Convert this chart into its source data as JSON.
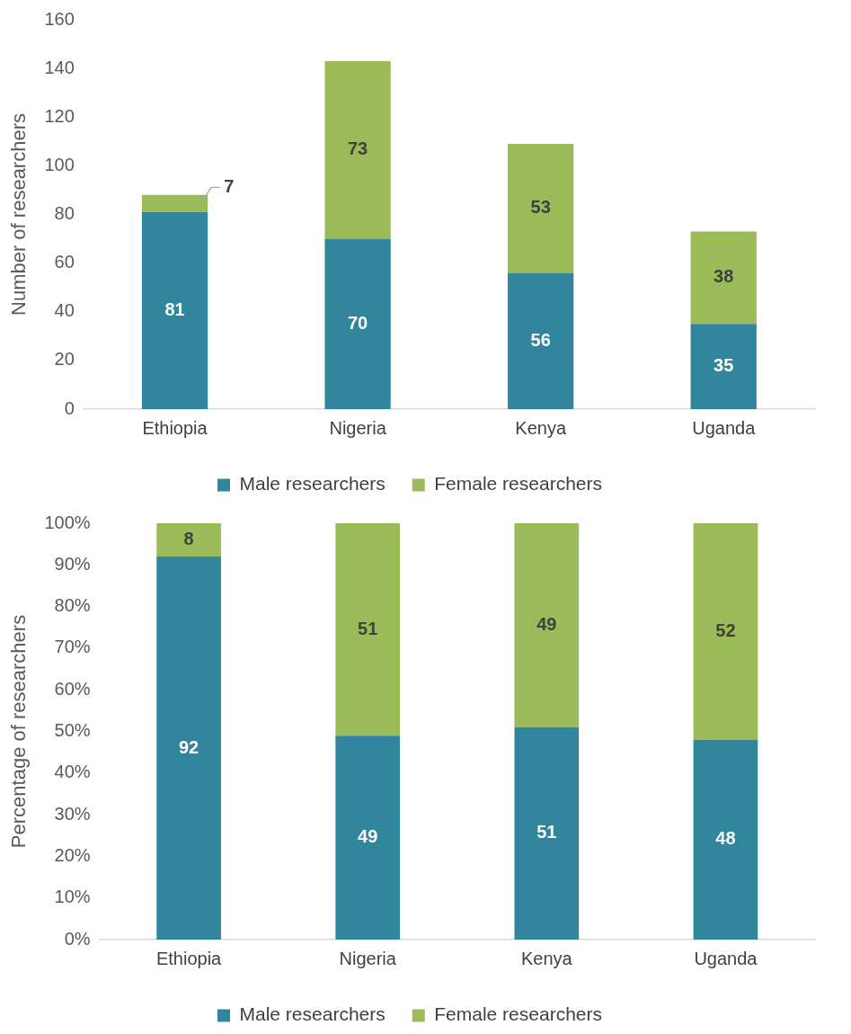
{
  "chart_data": [
    {
      "type": "bar",
      "stacked": true,
      "ylabel": "Number of researchers",
      "categories": [
        "Ethiopia",
        "Nigeria",
        "Kenya",
        "Uganda"
      ],
      "series": [
        {
          "name": "Male researchers",
          "color": "#31859c",
          "values": [
            81,
            70,
            56,
            35
          ]
        },
        {
          "name": "Female researchers",
          "color": "#9bbb59",
          "values": [
            7,
            73,
            53,
            38
          ]
        }
      ],
      "ylim": [
        0,
        160
      ],
      "yticks": [
        0,
        20,
        40,
        60,
        80,
        100,
        120,
        140,
        160
      ],
      "grid": false,
      "legend": "bottom",
      "data_labels": true
    },
    {
      "type": "bar",
      "stacked": true,
      "ylabel": "Percentage of researchers",
      "categories": [
        "Ethiopia",
        "Nigeria",
        "Kenya",
        "Uganda"
      ],
      "series": [
        {
          "name": "Male researchers",
          "color": "#31859c",
          "values": [
            92,
            49,
            51,
            48
          ]
        },
        {
          "name": "Female researchers",
          "color": "#9bbb59",
          "values": [
            8,
            51,
            49,
            52
          ]
        }
      ],
      "ylim": [
        0,
        100
      ],
      "yticks": [
        {
          "value": 0,
          "label": "0%"
        },
        {
          "value": 10,
          "label": "10%"
        },
        {
          "value": 20,
          "label": "20%"
        },
        {
          "value": 30,
          "label": "30%"
        },
        {
          "value": 40,
          "label": "40%"
        },
        {
          "value": 50,
          "label": "50%"
        },
        {
          "value": 60,
          "label": "60%"
        },
        {
          "value": 70,
          "label": "70%"
        },
        {
          "value": 80,
          "label": "80%"
        },
        {
          "value": 90,
          "label": "90%"
        },
        {
          "value": 100,
          "label": "100%"
        }
      ],
      "grid": false,
      "legend": "bottom",
      "data_labels": true
    }
  ]
}
